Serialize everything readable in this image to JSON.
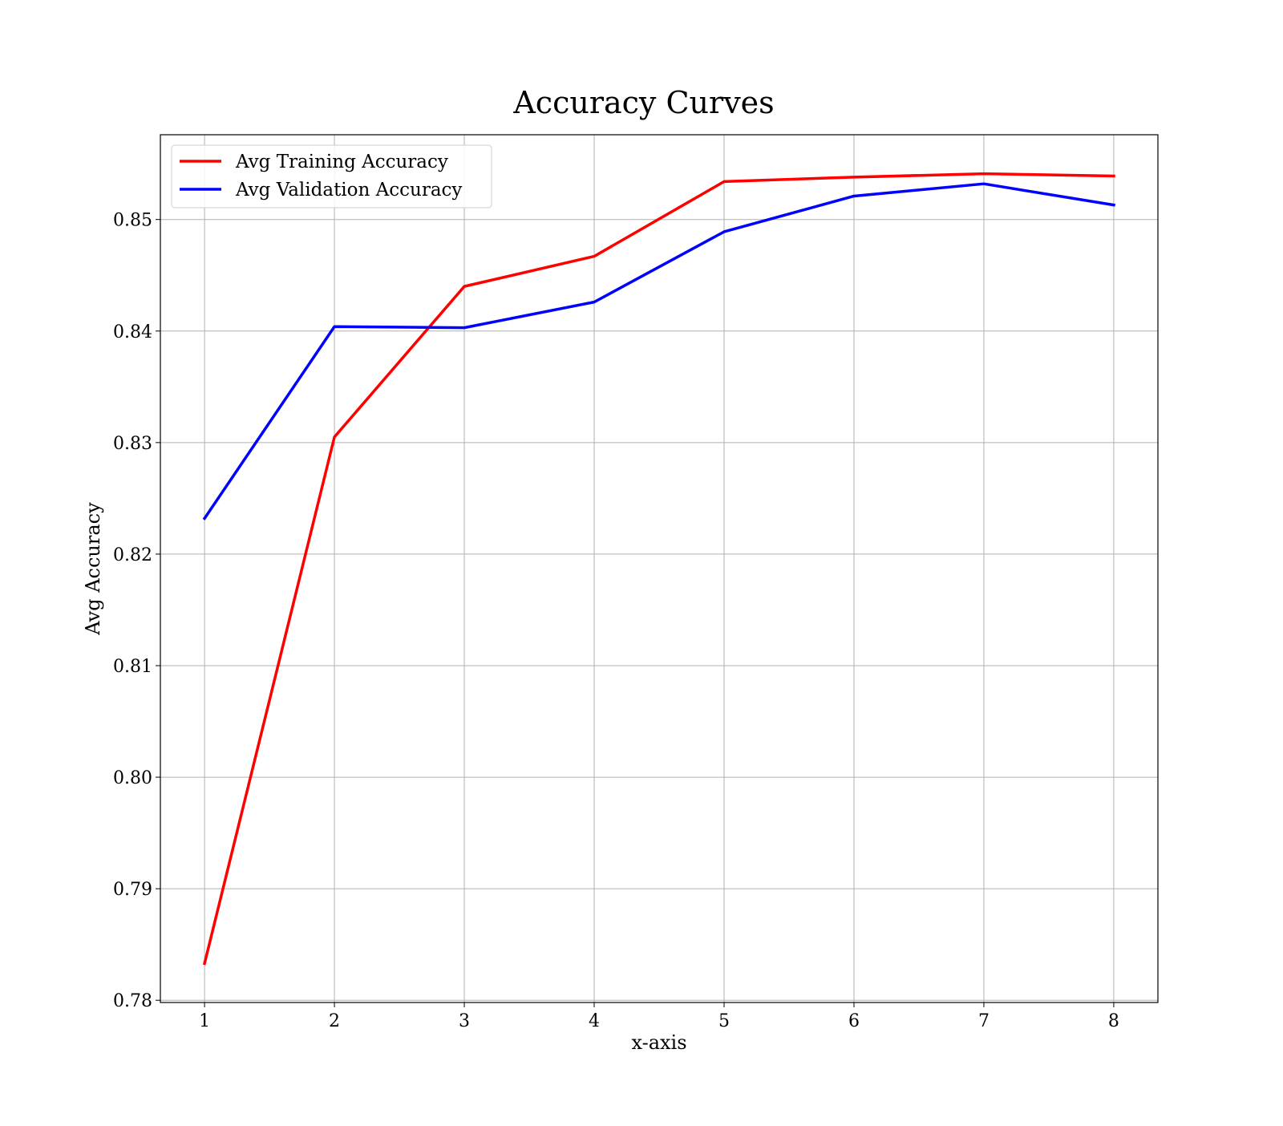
{
  "chart_data": {
    "type": "line",
    "title": "Accuracy Curves",
    "xlabel": "x-axis",
    "ylabel": "Avg Accuracy",
    "x": [
      1,
      2,
      3,
      4,
      5,
      6,
      7,
      8
    ],
    "xlim": [
      0.66,
      8.34
    ],
    "ylim": [
      0.7798,
      0.8576
    ],
    "x_ticks": [
      "1",
      "2",
      "3",
      "4",
      "5",
      "6",
      "7",
      "8"
    ],
    "y_ticks": [
      "0.78",
      "0.79",
      "0.80",
      "0.81",
      "0.82",
      "0.83",
      "0.84",
      "0.85"
    ],
    "grid": true,
    "legend_position": "top-left",
    "series": [
      {
        "name": "Avg Training Accuracy",
        "color": "#ff0000",
        "values": [
          0.7833,
          0.8305,
          0.844,
          0.8467,
          0.8534,
          0.8538,
          0.8541,
          0.8539
        ]
      },
      {
        "name": "Avg Validation Accuracy",
        "color": "#0000ff",
        "values": [
          0.8232,
          0.8404,
          0.8403,
          0.8426,
          0.8489,
          0.8521,
          0.8532,
          0.8513
        ]
      }
    ]
  }
}
